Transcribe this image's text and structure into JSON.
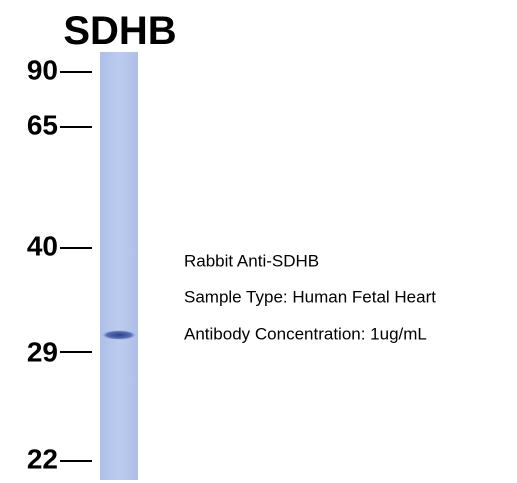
{
  "title": "SDHB",
  "markers": [
    "90",
    "65",
    "40",
    "29",
    "22"
  ],
  "info": [
    "Rabbit Anti-SDHB",
    "Sample Type: Human Fetal Heart",
    "Antibody Concentration: 1ug/mL"
  ]
}
